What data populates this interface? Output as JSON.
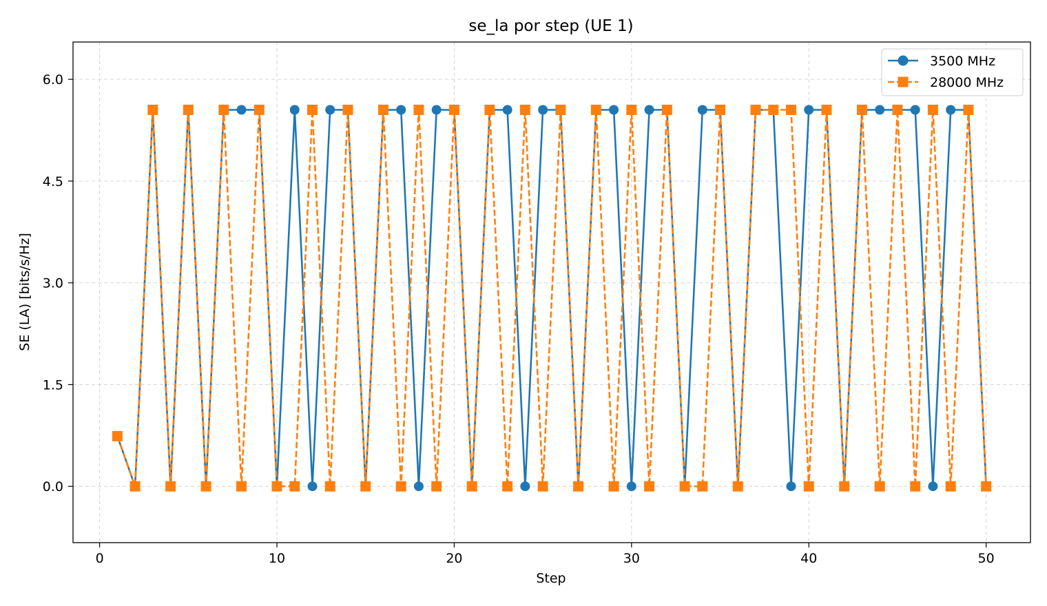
{
  "chart_data": {
    "type": "line",
    "title": "se_la por step (UE 1)",
    "xlabel": "Step",
    "ylabel": "SE (LA) [bits/s/Hz]",
    "xlim": [
      -1.5,
      52.5
    ],
    "ylim": [
      -0.83,
      6.55
    ],
    "xticks": [
      0,
      10,
      20,
      30,
      40,
      50
    ],
    "xtick_labels": [
      "0",
      "10",
      "20",
      "30",
      "40",
      "50"
    ],
    "yticks": [
      0.0,
      1.5,
      3.0,
      4.5,
      6.0
    ],
    "ytick_labels": [
      "0.0",
      "1.5",
      "3.0",
      "4.5",
      "6.0"
    ],
    "grid": true,
    "legend_position": "top-right",
    "x": [
      1,
      2,
      3,
      4,
      5,
      6,
      7,
      8,
      9,
      10,
      11,
      12,
      13,
      14,
      15,
      16,
      17,
      18,
      19,
      20,
      21,
      22,
      23,
      24,
      25,
      26,
      27,
      28,
      29,
      30,
      31,
      32,
      33,
      34,
      35,
      36,
      37,
      38,
      39,
      40,
      41,
      42,
      43,
      44,
      45,
      46,
      47,
      48,
      49,
      50
    ],
    "series": [
      {
        "name": "3500 MHz",
        "color": "#1f77b4",
        "line_style": "solid",
        "marker": "circle",
        "values": [
          0.74,
          0,
          5.55,
          0,
          5.55,
          0,
          5.55,
          5.55,
          5.55,
          0,
          5.55,
          0,
          5.55,
          5.55,
          0,
          5.55,
          5.55,
          0,
          5.55,
          5.55,
          0,
          5.55,
          5.55,
          0,
          5.55,
          5.55,
          0,
          5.55,
          5.55,
          0,
          5.55,
          5.55,
          0,
          5.55,
          5.55,
          0,
          5.55,
          5.55,
          0,
          5.55,
          5.55,
          0,
          5.55,
          5.55,
          5.55,
          5.55,
          0,
          5.55,
          5.55,
          0
        ]
      },
      {
        "name": "28000 MHz",
        "color": "#ff7f0e",
        "line_style": "dashed",
        "marker": "square",
        "values": [
          0.74,
          0,
          5.55,
          0,
          5.55,
          0,
          5.55,
          0,
          5.55,
          0,
          0,
          5.55,
          0,
          5.55,
          0,
          5.55,
          0,
          5.55,
          0,
          5.55,
          0,
          5.55,
          0,
          5.55,
          0,
          5.55,
          0,
          5.55,
          0,
          5.55,
          0,
          5.55,
          0,
          0,
          5.55,
          0,
          5.55,
          5.55,
          5.55,
          0,
          5.55,
          0,
          5.55,
          0,
          5.55,
          0,
          5.55,
          0,
          5.55,
          0
        ]
      }
    ]
  }
}
